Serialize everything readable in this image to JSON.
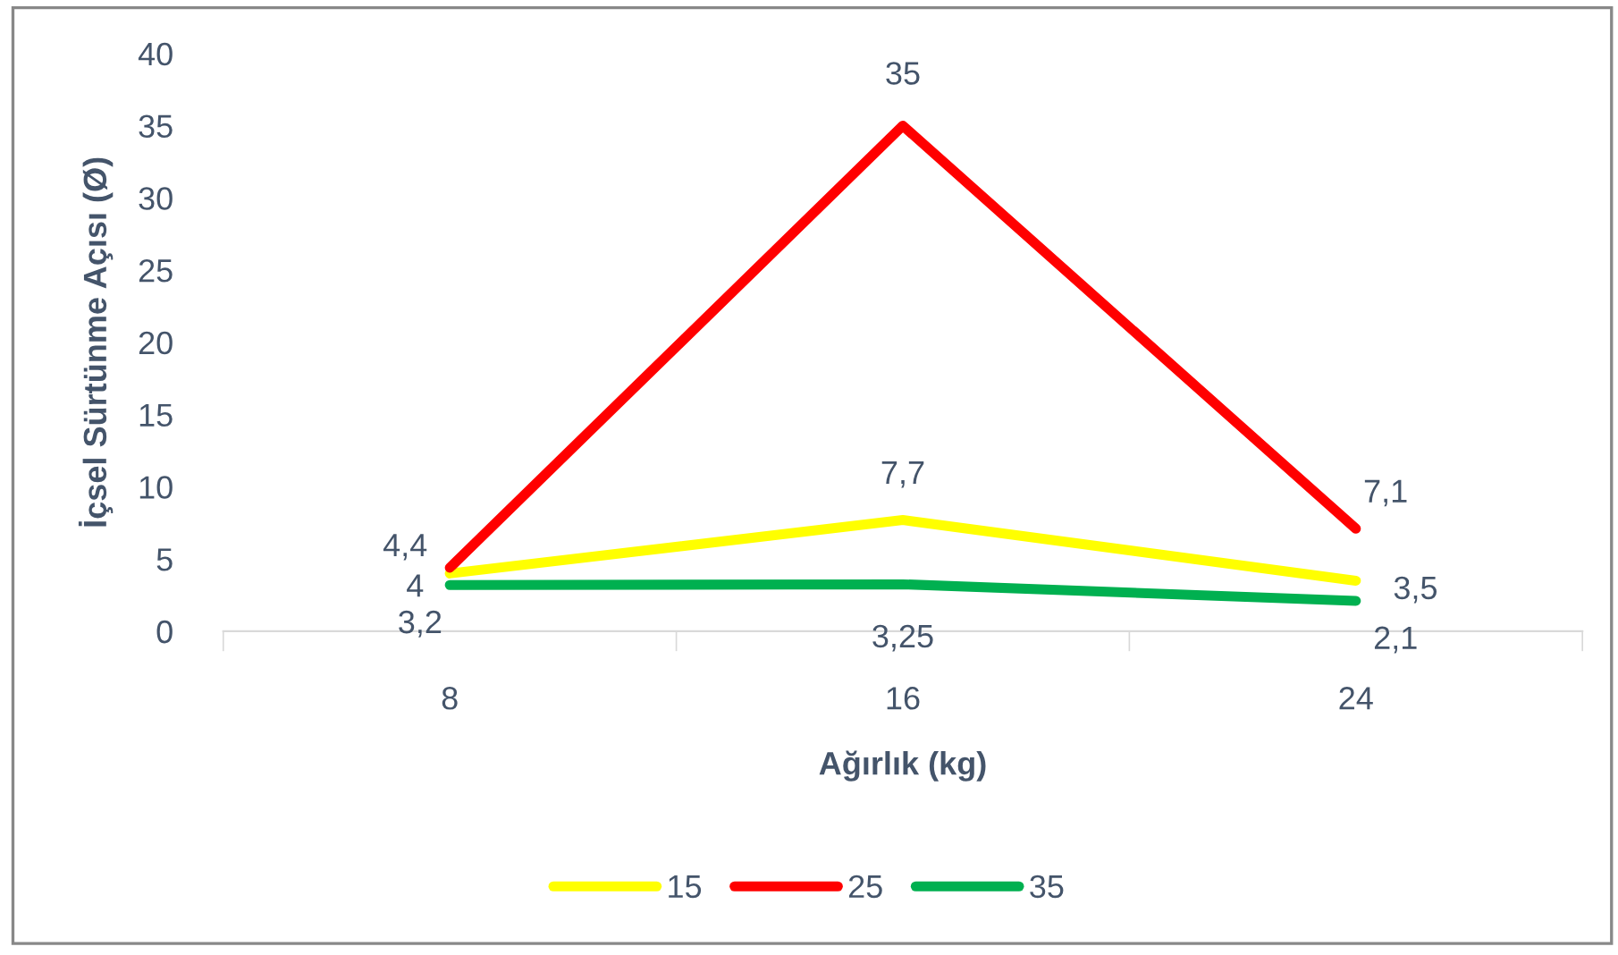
{
  "chart_data": {
    "type": "line",
    "xlabel": "Ağırlık (kg)",
    "ylabel": "İçsel Sürtünme Açısı (Ø)",
    "categories": [
      "8",
      "16",
      "24"
    ],
    "series": [
      {
        "name": "15",
        "color": "#ffff00",
        "values": [
          4,
          7.7,
          3.5
        ],
        "value_labels": [
          "4",
          "7,7",
          "3,5"
        ]
      },
      {
        "name": "25",
        "color": "#ff0000",
        "values": [
          4.4,
          35,
          7.1
        ],
        "value_labels": [
          "4,4",
          "35",
          "7,1"
        ]
      },
      {
        "name": "35",
        "color": "#00b050",
        "values": [
          3.2,
          3.25,
          2.1
        ],
        "value_labels": [
          "3,2",
          "3,25",
          "2,1"
        ]
      }
    ],
    "ylim": [
      0,
      40
    ],
    "yticks": [
      0,
      5,
      10,
      15,
      20,
      25,
      30,
      35,
      40
    ],
    "grid": false,
    "legend": "bottom",
    "marker": "none",
    "line_style": "solid"
  }
}
